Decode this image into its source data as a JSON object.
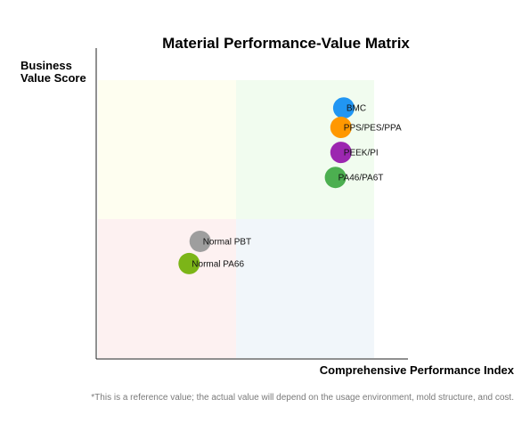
{
  "chart_data": {
    "type": "scatter",
    "title": "Material Performance-Value Matrix",
    "xlabel": "Comprehensive Performance Index",
    "ylabel_lines": [
      "Business",
      "Value Score"
    ],
    "xlim": [
      0,
      100
    ],
    "ylim": [
      0,
      100
    ],
    "grid": false,
    "legend": "none",
    "quadrants": [
      {
        "name": "low-performance-high-value",
        "x": [
          0,
          50
        ],
        "y": [
          50,
          100
        ],
        "color": "#fefef0"
      },
      {
        "name": "high-performance-high-value",
        "x": [
          50,
          100
        ],
        "y": [
          50,
          100
        ],
        "color": "#f1fcef"
      },
      {
        "name": "low-performance-low-value",
        "x": [
          0,
          50
        ],
        "y": [
          0,
          50
        ],
        "color": "#fdf1f1"
      },
      {
        "name": "high-performance-low-value",
        "x": [
          50,
          100
        ],
        "y": [
          0,
          50
        ],
        "color": "#f1f6fa"
      }
    ],
    "points": [
      {
        "label": "BMC",
        "x": 89,
        "y": 90,
        "color": "#2196f3"
      },
      {
        "label": "PPS/PES/PPA",
        "x": 88,
        "y": 83,
        "color": "#ff9800"
      },
      {
        "label": "PEEK/PI",
        "x": 88,
        "y": 74,
        "color": "#9c27b0"
      },
      {
        "label": "PA46/PA6T",
        "x": 86,
        "y": 65,
        "color": "#4caf50"
      },
      {
        "label": "Normal PBT",
        "x": 37,
        "y": 42,
        "color": "#9e9e9e"
      },
      {
        "label": "Normal PA66",
        "x": 33,
        "y": 34,
        "color": "#7cb518"
      }
    ]
  },
  "footnote": "*This is a reference value; the actual value will depend on the usage environment, mold structure, and cost."
}
